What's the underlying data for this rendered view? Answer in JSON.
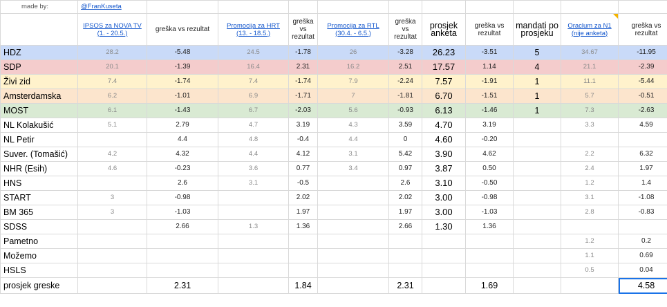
{
  "credit": {
    "label": "made by:",
    "handle": "@FranKuseta"
  },
  "headers": {
    "c1": "IPSOS za NOVA TV (1. - 20.5.)",
    "c2": "greška vs rezultat",
    "c3": "Promocija za HRT (13. - 18.5.)",
    "c4": "greška vs rezultat",
    "c5": "Promocija za RTL (30.4. - 6.5.)",
    "c6": "greška vs rezultat",
    "c7": "prosjek anketa",
    "c8": "greška vs rezultat",
    "c9": "mandati po prosjeku",
    "c10": "Oraclum za N1 (nije anketa)",
    "c11": "greška vs rezultat"
  },
  "colors": {
    "hdz": "#c9daf8",
    "sdp": "#f4cccc",
    "zivi_zid": "#fff2cc",
    "amsterdamska": "#fce5cd",
    "most": "#d9ead3",
    "link": "#1155cc",
    "note_marker": "#f4b400",
    "selection": "#1a73e8"
  },
  "rows": [
    {
      "name": "HDZ",
      "c1": "28.2",
      "c2": "-5.48",
      "c3": "24.5",
      "c4": "-1.78",
      "c5": "26",
      "c6": "-3.28",
      "c7": "26.23",
      "c8": "-3.51",
      "c9": "5",
      "c10": "34.67",
      "c11": "-11.95"
    },
    {
      "name": "SDP",
      "c1": "20.1",
      "c2": "-1.39",
      "c3": "16.4",
      "c4": "2.31",
      "c5": "16.2",
      "c6": "2.51",
      "c7": "17.57",
      "c8": "1.14",
      "c9": "4",
      "c10": "21.1",
      "c11": "-2.39"
    },
    {
      "name": "Živi zid",
      "c1": "7.4",
      "c2": "-1.74",
      "c3": "7.4",
      "c4": "-1.74",
      "c5": "7.9",
      "c6": "-2.24",
      "c7": "7.57",
      "c8": "-1.91",
      "c9": "1",
      "c10": "11.1",
      "c11": "-5.44"
    },
    {
      "name": "Amsterdamska",
      "c1": "6.2",
      "c2": "-1.01",
      "c3": "6.9",
      "c4": "-1.71",
      "c5": "7",
      "c6": "-1.81",
      "c7": "6.70",
      "c8": "-1.51",
      "c9": "1",
      "c10": "5.7",
      "c11": "-0.51"
    },
    {
      "name": "MOST",
      "c1": "6.1",
      "c2": "-1.43",
      "c3": "6.7",
      "c4": "-2.03",
      "c5": "5.6",
      "c6": "-0.93",
      "c7": "6.13",
      "c8": "-1.46",
      "c9": "1",
      "c10": "7.3",
      "c11": "-2.63"
    },
    {
      "name": "NL Kolakušić",
      "c1": "5.1",
      "c2": "2.79",
      "c3": "4.7",
      "c4": "3.19",
      "c5": "4.3",
      "c6": "3.59",
      "c7": "4.70",
      "c8": "3.19",
      "c9": "",
      "c10": "3.3",
      "c11": "4.59"
    },
    {
      "name": "NL Petir",
      "c1": "",
      "c2": "4.4",
      "c3": "4.8",
      "c4": "-0.4",
      "c5": "4.4",
      "c6": "0",
      "c7": "4.60",
      "c8": "-0.20",
      "c9": "",
      "c10": "",
      "c11": ""
    },
    {
      "name": "Suver. (Tomašić)",
      "c1": "4.2",
      "c2": "4.32",
      "c3": "4.4",
      "c4": "4.12",
      "c5": "3.1",
      "c6": "5.42",
      "c7": "3.90",
      "c8": "4.62",
      "c9": "",
      "c10": "2.2",
      "c11": "6.32"
    },
    {
      "name": "NHR (Esih)",
      "c1": "4.6",
      "c2": "-0.23",
      "c3": "3.6",
      "c4": "0.77",
      "c5": "3.4",
      "c6": "0.97",
      "c7": "3.87",
      "c8": "0.50",
      "c9": "",
      "c10": "2.4",
      "c11": "1.97"
    },
    {
      "name": "HNS",
      "c1": "",
      "c2": "2.6",
      "c3": "3.1",
      "c4": "-0.5",
      "c5": "",
      "c6": "2.6",
      "c7": "3.10",
      "c8": "-0.50",
      "c9": "",
      "c10": "1.2",
      "c11": "1.4"
    },
    {
      "name": "START",
      "c1": "3",
      "c2": "-0.98",
      "c3": "",
      "c4": "2.02",
      "c5": "",
      "c6": "2.02",
      "c7": "3.00",
      "c8": "-0.98",
      "c9": "",
      "c10": "3.1",
      "c11": "-1.08"
    },
    {
      "name": "BM 365",
      "c1": "3",
      "c2": "-1.03",
      "c3": "",
      "c4": "1.97",
      "c5": "",
      "c6": "1.97",
      "c7": "3.00",
      "c8": "-1.03",
      "c9": "",
      "c10": "2.8",
      "c11": "-0.83"
    },
    {
      "name": "SDSS",
      "c1": "",
      "c2": "2.66",
      "c3": "1.3",
      "c4": "1.36",
      "c5": "",
      "c6": "2.66",
      "c7": "1.30",
      "c8": "1.36",
      "c9": "",
      "c10": "",
      "c11": ""
    },
    {
      "name": "Pametno",
      "c1": "",
      "c2": "",
      "c3": "",
      "c4": "",
      "c5": "",
      "c6": "",
      "c7": "",
      "c8": "",
      "c9": "",
      "c10": "1.2",
      "c11": "0.2"
    },
    {
      "name": "Možemo",
      "c1": "",
      "c2": "",
      "c3": "",
      "c4": "",
      "c5": "",
      "c6": "",
      "c7": "",
      "c8": "",
      "c9": "",
      "c10": "1.1",
      "c11": "0.69"
    },
    {
      "name": "HSLS",
      "c1": "",
      "c2": "",
      "c3": "",
      "c4": "",
      "c5": "",
      "c6": "",
      "c7": "",
      "c8": "",
      "c9": "",
      "c10": "0.5",
      "c11": "0.04"
    }
  ],
  "summary": {
    "label": "prosjek greske",
    "c2": "2.31",
    "c4": "1.84",
    "c6": "2.31",
    "c8": "1.69",
    "c11": "4.58"
  }
}
